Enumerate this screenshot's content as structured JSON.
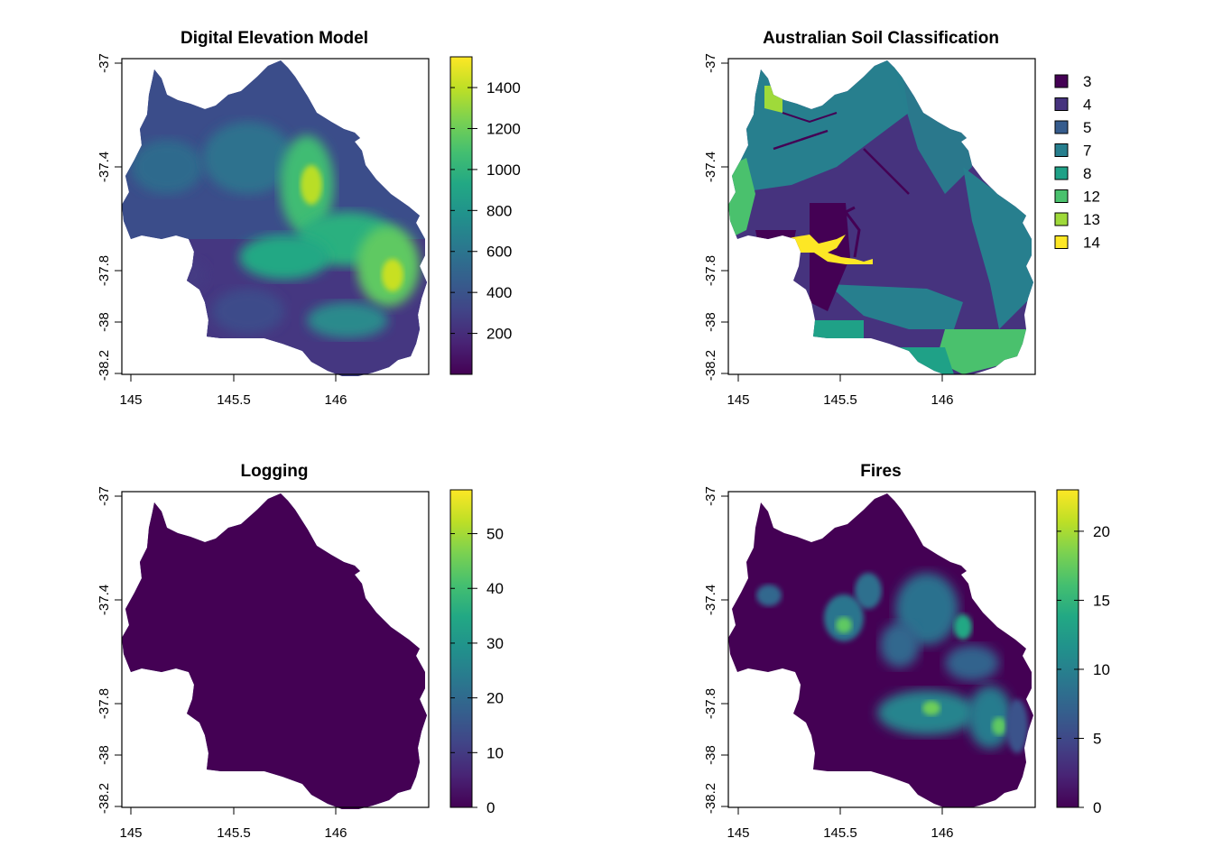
{
  "panels": [
    {
      "id": "dem",
      "title": "Digital Elevation Model",
      "xticks": [
        "145",
        "145.5",
        "146"
      ],
      "yticks": [
        "-37",
        "-37.4",
        "-37.8",
        "-38",
        "-38.2"
      ],
      "legend_type": "continuous",
      "legend_ticks": [
        "1400",
        "1200",
        "1000",
        "800",
        "600",
        "400",
        "200"
      ],
      "legend_values": [
        1400,
        1200,
        1000,
        800,
        600,
        400,
        200
      ],
      "legend_range": [
        0,
        1550
      ]
    },
    {
      "id": "soil",
      "title": "Australian Soil Classification",
      "xticks": [
        "145",
        "145.5",
        "146"
      ],
      "yticks": [
        "-37",
        "-37.4",
        "-37.8",
        "-38",
        "-38.2"
      ],
      "legend_type": "categorical",
      "categories": [
        "3",
        "4",
        "5",
        "7",
        "8",
        "12",
        "13",
        "14"
      ],
      "category_colors": [
        "#440154",
        "#46337e",
        "#365c8d",
        "#277f8e",
        "#1fa187",
        "#4ac16d",
        "#9fda3a",
        "#fde725"
      ]
    },
    {
      "id": "logging",
      "title": "Logging",
      "xticks": [
        "145",
        "145.5",
        "146"
      ],
      "yticks": [
        "-37",
        "-37.4",
        "-37.8",
        "-38",
        "-38.2"
      ],
      "legend_type": "continuous",
      "legend_ticks": [
        "50",
        "40",
        "30",
        "20",
        "10",
        "0"
      ],
      "legend_values": [
        50,
        40,
        30,
        20,
        10,
        0
      ],
      "legend_range": [
        0,
        58
      ]
    },
    {
      "id": "fires",
      "title": "Fires",
      "xticks": [
        "145",
        "145.5",
        "146"
      ],
      "yticks": [
        "-37",
        "-37.4",
        "-37.8",
        "-38",
        "-38.2"
      ],
      "legend_type": "continuous",
      "legend_ticks": [
        "20",
        "15",
        "10",
        "5",
        "0"
      ],
      "legend_values": [
        20,
        15,
        10,
        5,
        0
      ],
      "legend_range": [
        0,
        23
      ]
    }
  ],
  "colors": {
    "viridis_dark": "#440154",
    "viridis_mid": "#21908c",
    "viridis_light": "#fde725"
  }
}
